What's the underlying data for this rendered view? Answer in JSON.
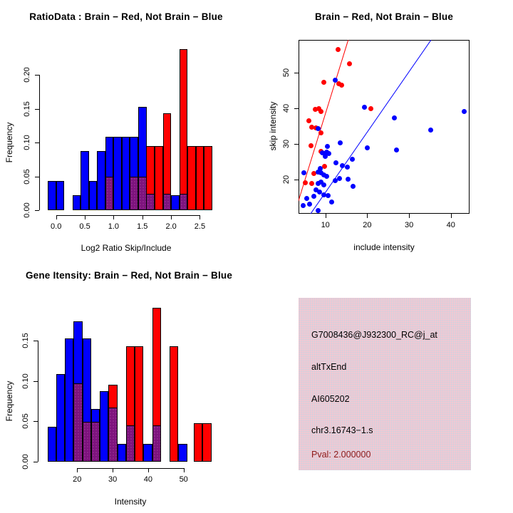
{
  "palette": {
    "red": "#ff0000",
    "blue": "#0000ff",
    "overlap_purple": "#7d137d",
    "axis_black": "#000000",
    "pval_red": "#8b1a1a",
    "info_box_pink": "#f2c8d2"
  },
  "chart_data": [
    {
      "id": "ratio-hist",
      "type": "bar",
      "title": "RatioData : Brain − Red, Not Brain − Blue",
      "xlabel": "Log2 Ratio Skip/Include",
      "ylabel": "Frequency",
      "legend_note": "Brain = red bars, Not Brain = blue bars, purple = overlap",
      "xlim": [
        -0.2,
        2.75
      ],
      "ylim": [
        0,
        0.247
      ],
      "bin_width": 0.143,
      "x_ticks": [
        {
          "v": 0.0,
          "label": "0.0"
        },
        {
          "v": 0.5,
          "label": "0.5"
        },
        {
          "v": 1.0,
          "label": "1.0"
        },
        {
          "v": 1.5,
          "label": "1.5"
        },
        {
          "v": 2.0,
          "label": "2.0"
        },
        {
          "v": 2.5,
          "label": "2.5"
        }
      ],
      "y_ticks": [
        {
          "v": 0.0,
          "label": "0.00"
        },
        {
          "v": 0.05,
          "label": "0.05"
        },
        {
          "v": 0.1,
          "label": "0.10"
        },
        {
          "v": 0.15,
          "label": "0.15"
        },
        {
          "v": 0.2,
          "label": "0.20"
        }
      ],
      "bars": [
        {
          "x": -0.143,
          "c": "blue",
          "h": 0.0435
        },
        {
          "x": 0.0,
          "c": "blue",
          "h": 0.0435
        },
        {
          "x": 0.286,
          "c": "blue",
          "h": 0.0217
        },
        {
          "x": 0.429,
          "c": "blue",
          "h": 0.087
        },
        {
          "x": 0.571,
          "c": "blue",
          "h": 0.0435
        },
        {
          "x": 0.714,
          "c": "blue",
          "h": 0.087
        },
        {
          "x": 0.857,
          "c": "blue",
          "h": 0.1087,
          "ov": 0.0476
        },
        {
          "x": 1.0,
          "c": "blue",
          "h": 0.1087
        },
        {
          "x": 1.143,
          "c": "blue",
          "h": 0.1087
        },
        {
          "x": 1.286,
          "c": "blue",
          "h": 0.1087,
          "ov": 0.0476
        },
        {
          "x": 1.429,
          "c": "blue",
          "h": 0.1522,
          "ov": 0.0476
        },
        {
          "x": 1.571,
          "c": "red",
          "h": 0.0952,
          "ov": 0.0217
        },
        {
          "x": 1.714,
          "c": "red",
          "h": 0.0952
        },
        {
          "x": 1.857,
          "c": "red",
          "h": 0.1429,
          "ov": 0.0217
        },
        {
          "x": 2.0,
          "c": "blue",
          "h": 0.0217
        },
        {
          "x": 2.143,
          "c": "red",
          "h": 0.2381,
          "ov": 0.0217
        },
        {
          "x": 2.286,
          "c": "red",
          "h": 0.0952
        },
        {
          "x": 2.429,
          "c": "red",
          "h": 0.0952
        },
        {
          "x": 2.571,
          "c": "red",
          "h": 0.0952
        }
      ]
    },
    {
      "id": "scatter",
      "type": "scatter",
      "title": "Brain − Red, Not Brain − Blue",
      "xlabel": "include intensity",
      "ylabel": "skip intensity",
      "xlim": [
        3.6,
        44.5
      ],
      "ylim": [
        10.3,
        59.1
      ],
      "x_ticks": [
        {
          "v": 10,
          "label": "10"
        },
        {
          "v": 20,
          "label": "20"
        },
        {
          "v": 30,
          "label": "30"
        },
        {
          "v": 40,
          "label": "40"
        }
      ],
      "y_ticks": [
        {
          "v": 20,
          "label": "20"
        },
        {
          "v": 30,
          "label": "30"
        },
        {
          "v": 40,
          "label": "40"
        },
        {
          "v": 50,
          "label": "50"
        }
      ],
      "series": [
        {
          "name": "Brain",
          "color": "red",
          "points": [
            [
              13,
              56.5
            ],
            [
              15.7,
              52.5
            ],
            [
              9.7,
              47.3
            ],
            [
              13.2,
              46.8
            ],
            [
              13.9,
              46.4
            ],
            [
              7.5,
              39.7
            ],
            [
              8.4,
              39.9
            ],
            [
              9,
              39.1
            ],
            [
              20.8,
              39.9
            ],
            [
              6,
              36.4
            ],
            [
              6.7,
              34.7
            ],
            [
              7.7,
              34.4
            ],
            [
              8.9,
              33
            ],
            [
              6.6,
              29.5
            ],
            [
              9,
              27.9
            ],
            [
              9.8,
              23.7
            ],
            [
              7.3,
              21.7
            ],
            [
              5.2,
              19.1
            ],
            [
              6.8,
              18.8
            ]
          ]
        },
        {
          "name": "Not Brain",
          "color": "blue",
          "points": [
            [
              12.4,
              47.9
            ],
            [
              19.4,
              40.2
            ],
            [
              43.2,
              39
            ],
            [
              26.5,
              37.3
            ],
            [
              35.1,
              33.8
            ],
            [
              8.3,
              34.3
            ],
            [
              27,
              28.2
            ],
            [
              13.6,
              30.3
            ],
            [
              10.4,
              29.2
            ],
            [
              9.3,
              27.5
            ],
            [
              9.8,
              27.3
            ],
            [
              10.3,
              27.7
            ],
            [
              10.9,
              27.2
            ],
            [
              10,
              26.5
            ],
            [
              20.1,
              28.9
            ],
            [
              12.6,
              24.7
            ],
            [
              16.4,
              25.7
            ],
            [
              14,
              23.9
            ],
            [
              15.3,
              23.5
            ],
            [
              8.7,
              23
            ],
            [
              4.9,
              21.8
            ],
            [
              8.3,
              22
            ],
            [
              9,
              21.8
            ],
            [
              9.6,
              21.3
            ],
            [
              10.3,
              20.9
            ],
            [
              13.4,
              20.3
            ],
            [
              15.5,
              20
            ],
            [
              12.4,
              19.7
            ],
            [
              9,
              19.3
            ],
            [
              8.2,
              18.9
            ],
            [
              9.7,
              18.5
            ],
            [
              16.6,
              18
            ],
            [
              7.8,
              17.1
            ],
            [
              8.6,
              16.4
            ],
            [
              9.6,
              15.7
            ],
            [
              10.6,
              15.5
            ],
            [
              7.2,
              15.3
            ],
            [
              5.6,
              14.7
            ],
            [
              11.5,
              13.7
            ],
            [
              6.3,
              13
            ],
            [
              4.6,
              12.6
            ],
            [
              8.3,
              11.2
            ]
          ]
        }
      ],
      "lines": [
        {
          "color": "red",
          "from": [
            3.6,
            13.9
          ],
          "to": [
            15.5,
            59.1
          ]
        },
        {
          "color": "blue",
          "from": [
            6.5,
            10.3
          ],
          "to": [
            35.3,
            59.1
          ]
        }
      ]
    },
    {
      "id": "gene-hist",
      "type": "bar",
      "title": "Gene Itensity: Brain − Red, Not Brain − Blue",
      "xlabel": "Intensity",
      "ylabel": "Frequency",
      "legend_note": "Brain = red bars, Not Brain = blue bars, purple = overlap",
      "xlim": [
        11.5,
        58.5
      ],
      "ylim": [
        0,
        0.198
      ],
      "bin_width": 2.46,
      "x_ticks": [
        {
          "v": 20,
          "label": "20"
        },
        {
          "v": 30,
          "label": "30"
        },
        {
          "v": 40,
          "label": "40"
        },
        {
          "v": 50,
          "label": "50"
        }
      ],
      "y_ticks": [
        {
          "v": 0.0,
          "label": "0.00"
        },
        {
          "v": 0.05,
          "label": "0.05"
        },
        {
          "v": 0.1,
          "label": "0.10"
        },
        {
          "v": 0.15,
          "label": "0.15"
        }
      ],
      "bars": [
        {
          "x": 11.65,
          "c": "blue",
          "h": 0.0435
        },
        {
          "x": 14.11,
          "c": "blue",
          "h": 0.1087
        },
        {
          "x": 16.57,
          "c": "blue",
          "h": 0.1522
        },
        {
          "x": 19.03,
          "c": "blue",
          "h": 0.1739,
          "ov": 0.0952
        },
        {
          "x": 21.49,
          "c": "blue",
          "h": 0.1522,
          "ov": 0.0476
        },
        {
          "x": 23.95,
          "c": "blue",
          "h": 0.0652,
          "ov": 0.0476
        },
        {
          "x": 26.41,
          "c": "blue",
          "h": 0.087
        },
        {
          "x": 28.87,
          "c": "red",
          "h": 0.0952,
          "ov": 0.0652
        },
        {
          "x": 31.33,
          "c": "blue",
          "h": 0.0217
        },
        {
          "x": 33.79,
          "c": "red",
          "h": 0.1429,
          "ov": 0.0435
        },
        {
          "x": 36.25,
          "c": "red",
          "h": 0.1429
        },
        {
          "x": 38.71,
          "c": "blue",
          "h": 0.0217
        },
        {
          "x": 41.17,
          "c": "red",
          "h": 0.1905,
          "ov": 0.0435
        },
        {
          "x": 46.09,
          "c": "red",
          "h": 0.1429
        },
        {
          "x": 48.55,
          "c": "blue",
          "h": 0.0217
        },
        {
          "x": 52.9,
          "c": "red",
          "h": 0.0476
        },
        {
          "x": 55.36,
          "c": "red",
          "h": 0.0476
        }
      ]
    }
  ],
  "info_box": {
    "lines": [
      "G7008436@J932300_RC@j_at",
      "altTxEnd",
      "AI605202",
      "chr3.16743−1.s"
    ],
    "pval": "Pval: 2.000000"
  }
}
